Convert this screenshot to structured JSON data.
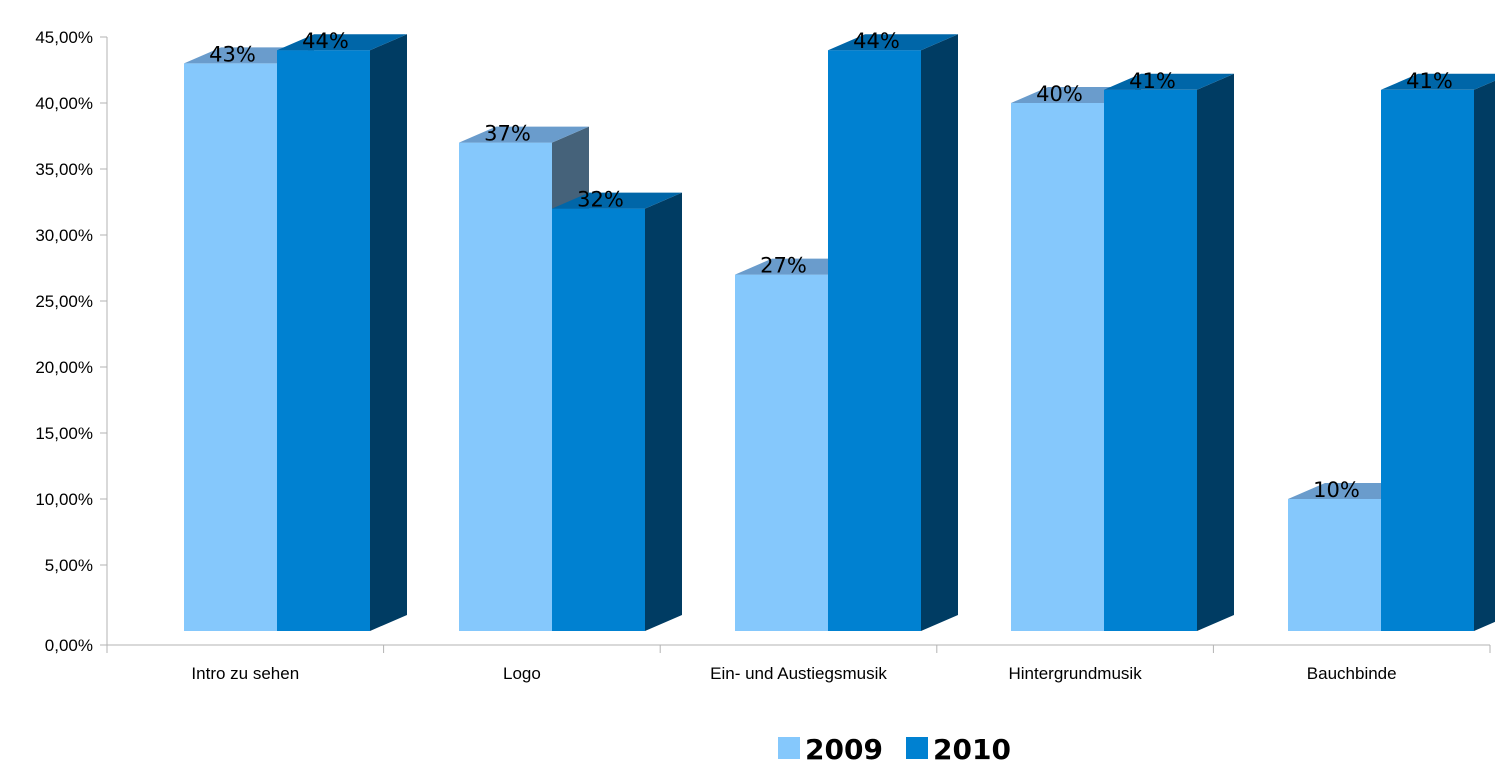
{
  "chart_data": {
    "type": "bar",
    "categories": [
      "Intro zu sehen",
      "Logo",
      "Ein- und Austiegsmusik",
      "Hintergrundmusik",
      "Bauchbinde"
    ],
    "series": [
      {
        "name": "2009",
        "values": [
          43,
          37,
          27,
          40,
          10
        ],
        "labels": [
          "43%",
          "37%",
          "27%",
          "40%",
          "10%"
        ],
        "color": "#85c8fc"
      },
      {
        "name": "2010",
        "values": [
          44,
          32,
          44,
          41,
          41
        ],
        "labels": [
          "44%",
          "32%",
          "44%",
          "41%",
          "41%"
        ],
        "color": "#0081d1"
      }
    ],
    "ylim": [
      0,
      45
    ],
    "yticks": [
      "0,00%",
      "5,00%",
      "10,00%",
      "15,00%",
      "20,00%",
      "25,00%",
      "30,00%",
      "35,00%",
      "40,00%",
      "45,00%"
    ],
    "legend_position": "bottom",
    "grid": false,
    "style": "3d-bar"
  }
}
